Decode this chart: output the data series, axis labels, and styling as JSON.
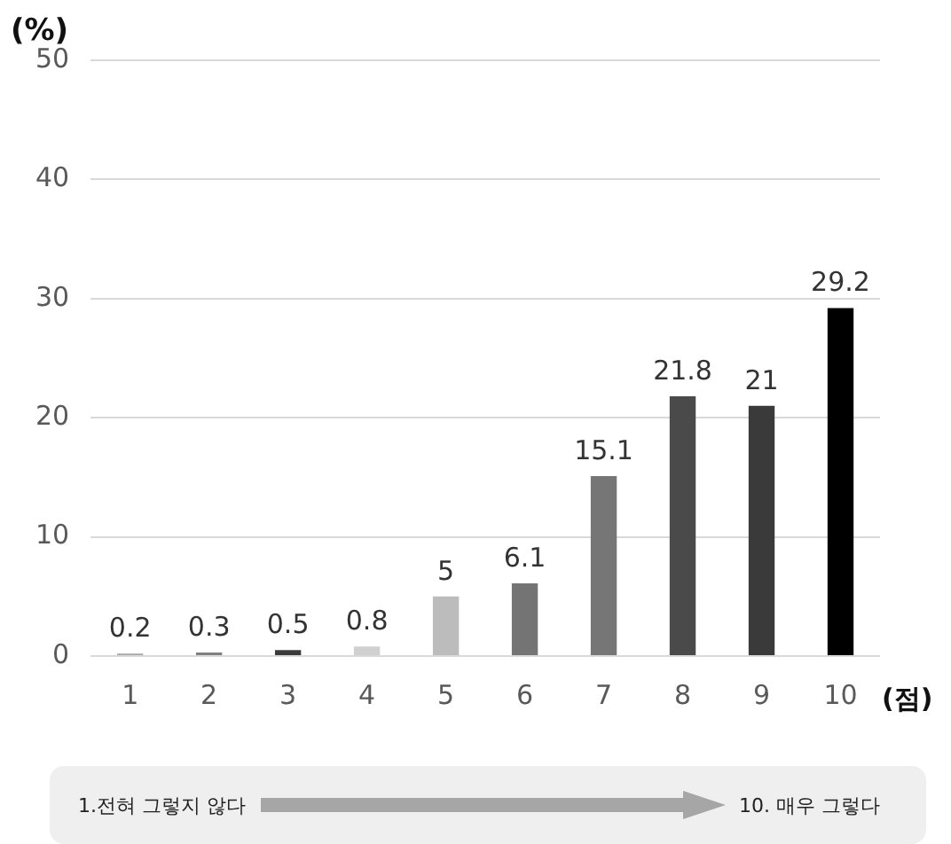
{
  "chart_data": {
    "type": "bar",
    "ylabel": "(%)",
    "xlabel": "(점)",
    "categories": [
      "1",
      "2",
      "3",
      "4",
      "5",
      "6",
      "7",
      "8",
      "9",
      "10"
    ],
    "values": [
      0.2,
      0.3,
      0.5,
      0.8,
      5,
      6.1,
      15.1,
      21.8,
      21,
      29.2
    ],
    "colors": [
      "#a6a6a6",
      "#7f7f7f",
      "#3a3a3a",
      "#d0d0d0",
      "#bcbcbc",
      "#747474",
      "#767676",
      "#4a4a4a",
      "#3a3a3a",
      "#000000"
    ],
    "ylim": [
      0,
      50
    ],
    "yticks": [
      0,
      10,
      20,
      30,
      40,
      50
    ],
    "grid": "y",
    "data_labels": true,
    "annotations": [
      "1.전혀 그렇지 않다",
      "10. 매우 그렇다"
    ]
  }
}
